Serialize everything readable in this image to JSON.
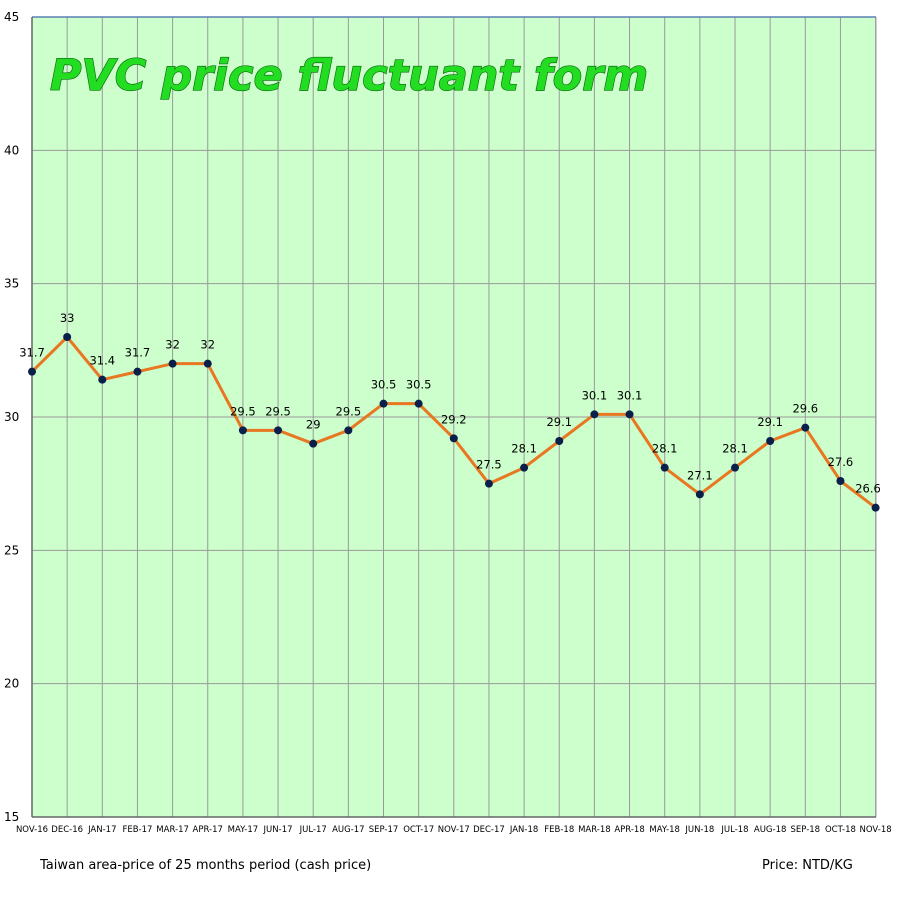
{
  "chart_data": {
    "type": "line",
    "title": "PVC price fluctuant form",
    "categories": [
      "NOV-16",
      "DEC-16",
      "JAN-17",
      "FEB-17",
      "MAR-17",
      "APR-17",
      "MAY-17",
      "JUN-17",
      "JUL-17",
      "AUG-17",
      "SEP-17",
      "OCT-17",
      "NOV-17",
      "DEC-17",
      "JAN-18",
      "FEB-18",
      "MAR-18",
      "APR-18",
      "MAY-18",
      "JUN-18",
      "JUL-18",
      "AUG-18",
      "SEP-18",
      "OCT-18",
      "NOV-18"
    ],
    "values": [
      31.7,
      33,
      31.4,
      31.7,
      32,
      32,
      29.5,
      29.5,
      29,
      29.5,
      30.5,
      30.5,
      29.2,
      27.5,
      28.1,
      29.1,
      30.1,
      30.1,
      28.1,
      27.1,
      28.1,
      29.1,
      29.6,
      27.6,
      26.6
    ],
    "labels": [
      "31.7",
      "33",
      "31.4",
      "31.7",
      "32",
      "32",
      "29.5",
      "29.5",
      "29",
      "29.5",
      "30.5",
      "30.5",
      "29.2",
      "27.5",
      "28.1",
      "29.1",
      "30.1",
      "30.1",
      "28.1",
      "27.1",
      "28.1",
      "29.1",
      "29.6",
      "27.6",
      "26.6"
    ],
    "ylim": [
      15,
      45
    ],
    "yticks": [
      "15",
      "20",
      "25",
      "30",
      "35",
      "40",
      "45"
    ],
    "grid": true,
    "line_color": "#e87722",
    "marker_color": "#0a1f4a",
    "plot_background": "#ccffcc",
    "title_color": "#22dd22"
  },
  "footer": {
    "left": "Taiwan area-price of 25 months period (cash price)",
    "right": "Price: NTD/KG"
  }
}
